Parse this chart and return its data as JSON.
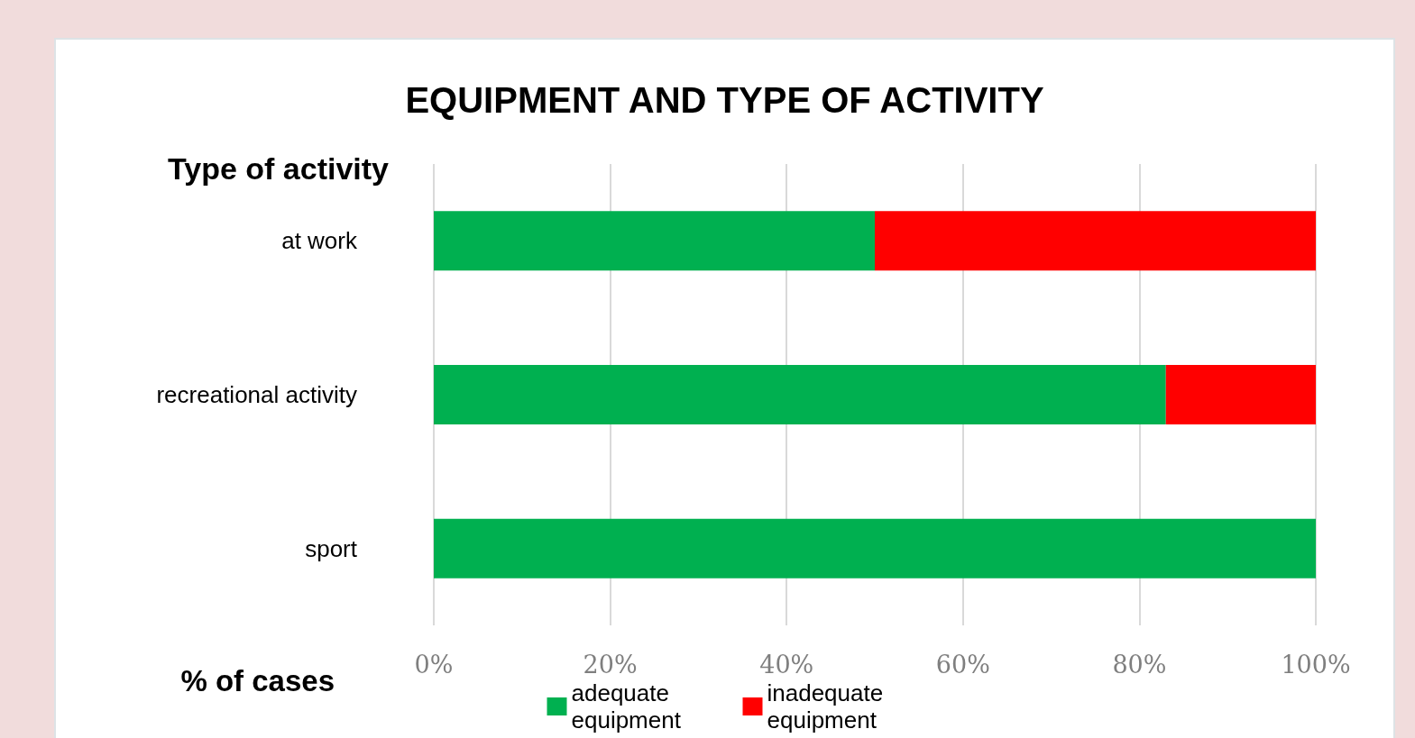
{
  "chart_data": {
    "type": "bar",
    "orientation": "horizontal",
    "stacked": true,
    "title": "EQUIPMENT AND TYPE OF ACTIVITY",
    "ylabel": "Type of activity",
    "xlabel": "% of cases",
    "categories": [
      "at work",
      "recreational activity",
      "sport"
    ],
    "series": [
      {
        "name": "adequate equipment",
        "color": "#00b050",
        "values": [
          50,
          83,
          100
        ]
      },
      {
        "name": "inadequate equipment",
        "color": "#ff0000",
        "values": [
          50,
          17,
          0
        ]
      }
    ],
    "xlim": [
      0,
      100
    ],
    "xticks": [
      {
        "value": 0,
        "label": "0%"
      },
      {
        "value": 20,
        "label": "20%"
      },
      {
        "value": 40,
        "label": "40%"
      },
      {
        "value": 60,
        "label": "60%"
      },
      {
        "value": 80,
        "label": "80%"
      },
      {
        "value": 100,
        "label": "100%"
      }
    ],
    "grid": "x",
    "legend": "bottom"
  }
}
